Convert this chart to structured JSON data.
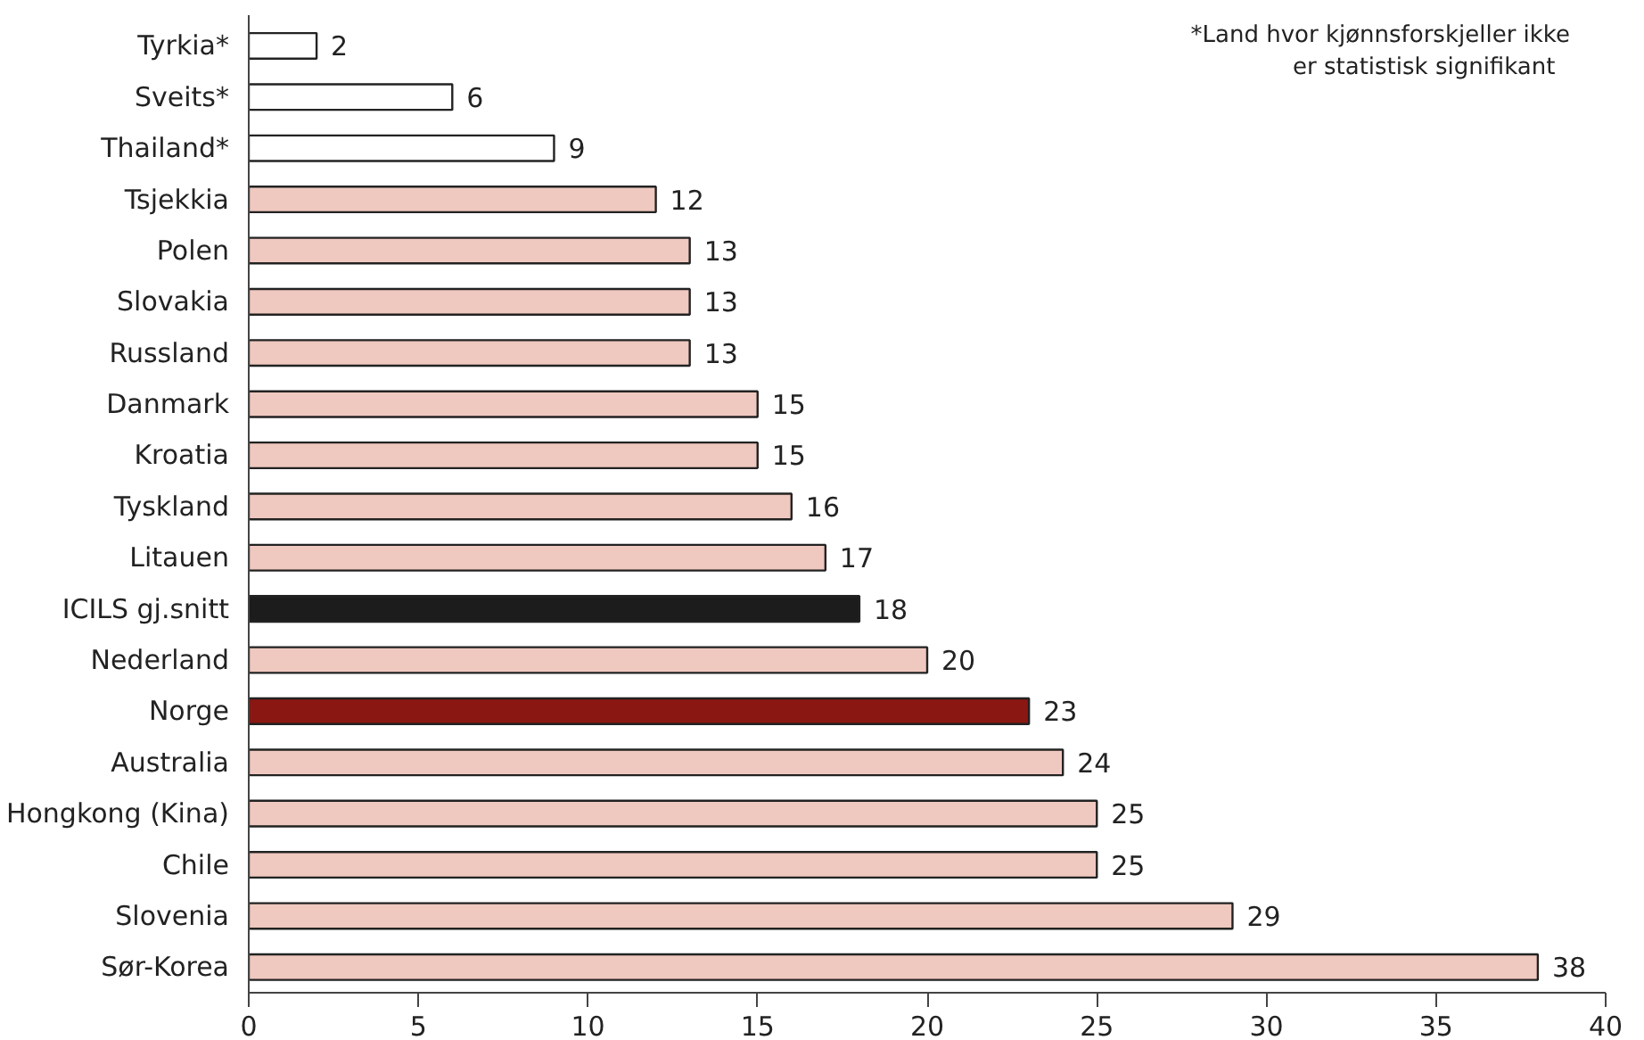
{
  "chart_data": {
    "type": "bar",
    "orientation": "horizontal",
    "categories": [
      "Tyrkia*",
      "Sveits*",
      "Thailand*",
      "Tsjekkia",
      "Polen",
      "Slovakia",
      "Russland",
      "Danmark",
      "Kroatia",
      "Tyskland",
      "Litauen",
      "ICILS gj.snitt",
      "Nederland",
      "Norge",
      "Australia",
      "Hongkong (Kina)",
      "Chile",
      "Slovenia",
      "Sør-Korea"
    ],
    "values": [
      2,
      6,
      9,
      12,
      13,
      13,
      13,
      15,
      15,
      16,
      17,
      18,
      20,
      23,
      24,
      25,
      25,
      29,
      38
    ],
    "colors": [
      "#ffffff",
      "#ffffff",
      "#ffffff",
      "#efc8bf",
      "#efc8bf",
      "#efc8bf",
      "#efc8bf",
      "#efc8bf",
      "#efc8bf",
      "#efc8bf",
      "#efc8bf",
      "#1c1c1c",
      "#efc8bf",
      "#8b1713",
      "#efc8bf",
      "#efc8bf",
      "#efc8bf",
      "#efc8bf",
      "#efc8bf"
    ],
    "xlim": [
      0,
      40
    ],
    "xticks": [
      0,
      5,
      10,
      15,
      20,
      25,
      30,
      35,
      40
    ],
    "data_labels": true,
    "grid": false,
    "annotations": [
      "*Land hvor kjønnsforskjeller ikke\n  er statistisk signifikant"
    ]
  }
}
